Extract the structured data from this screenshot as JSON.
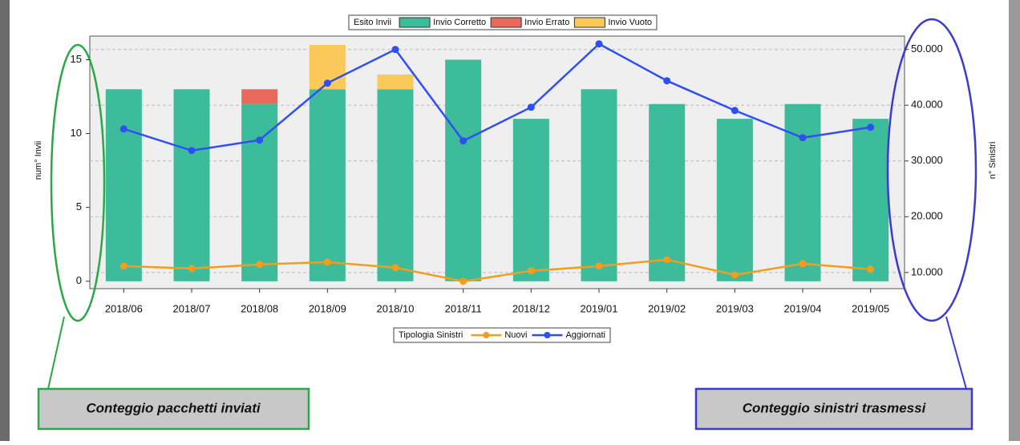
{
  "chart_data": {
    "type": "bar",
    "categories": [
      "2018/06",
      "2018/07",
      "2018/08",
      "2018/09",
      "2018/10",
      "2018/11",
      "2018/12",
      "2019/01",
      "2019/02",
      "2019/03",
      "2019/04",
      "2019/05"
    ],
    "ylabel": "num° Invii",
    "y2label": "n° Sinistri",
    "ylim": [
      -0.5,
      16.6
    ],
    "yticks": [
      0,
      5,
      10,
      15
    ],
    "y2lim": [
      7100,
      52400
    ],
    "y2ticks": [
      {
        "value": 10000,
        "label": "10.000"
      },
      {
        "value": 20000,
        "label": "20.000"
      },
      {
        "value": 30000,
        "label": "30.000"
      },
      {
        "value": 40000,
        "label": "40.000"
      },
      {
        "value": 50000,
        "label": "50.000"
      }
    ],
    "grid": true,
    "legend_titles": [
      "Esito Invii",
      "Tipologia Sinistri"
    ],
    "series": [
      {
        "name": "Invio Corretto",
        "type": "bar",
        "color": "#3dbc9c",
        "values": [
          13,
          13,
          12,
          13,
          13,
          15,
          11,
          13,
          12,
          11,
          12,
          11
        ]
      },
      {
        "name": "Invio Errato",
        "type": "bar",
        "color": "#e8685c",
        "values": [
          0,
          0,
          1,
          0,
          0,
          0,
          0,
          0,
          0,
          0,
          0,
          0
        ]
      },
      {
        "name": "Invio Vuoto",
        "type": "bar",
        "color": "#fbc95a",
        "values": [
          0,
          0,
          0,
          3,
          1,
          0,
          0,
          0,
          0,
          0,
          0,
          0
        ]
      },
      {
        "name": "Nuovi",
        "type": "line",
        "axis": "y2",
        "color": "#f39c1e",
        "values": [
          11150,
          10720,
          11440,
          11870,
          10860,
          8420,
          10290,
          11150,
          12300,
          9570,
          11580,
          10580
        ]
      },
      {
        "name": "Aggiornati",
        "type": "line",
        "axis": "y2",
        "color": "#2f4ff5",
        "values": [
          35750,
          31870,
          33740,
          43960,
          50000,
          33600,
          39640,
          51000,
          44390,
          39060,
          34170,
          36040
        ]
      }
    ],
    "annotations": [
      "Conteggio pacchetti inviati",
      "Conteggio sinistri trasmessi"
    ]
  }
}
